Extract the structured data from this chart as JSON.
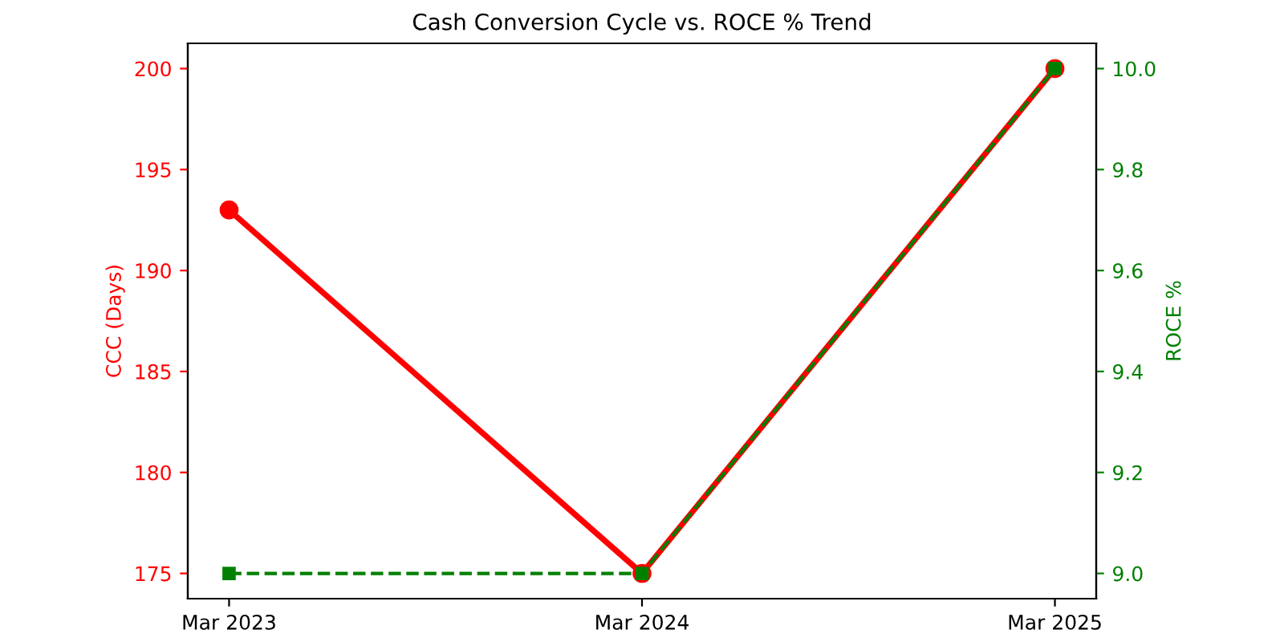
{
  "chart_data": {
    "type": "line",
    "title": "Cash Conversion Cycle vs. ROCE % Trend",
    "ylabel": "CCC (Days)",
    "y2label": "ROCE %",
    "categories": [
      "Mar 2023",
      "Mar 2024",
      "Mar 2025"
    ],
    "series": [
      {
        "color": "#ff0000",
        "values": [
          193,
          175,
          200
        ],
        "marker": "circle",
        "line_style": "solid"
      },
      {
        "color": "#008000",
        "values": [
          9.0,
          9.0,
          10.0
        ],
        "marker": "square",
        "line_style": "dashed",
        "axis": "y2"
      }
    ],
    "ylim": [
      173.75,
      201.25
    ],
    "yticks": [
      175,
      180,
      185,
      190,
      195,
      200
    ],
    "y2lim": [
      8.95,
      10.05
    ],
    "y2ticks": [
      {
        "value": 9.0,
        "label": "9.0"
      },
      {
        "value": 9.2,
        "label": "9.2"
      },
      {
        "value": 9.4,
        "label": "9.4"
      },
      {
        "value": 9.6,
        "label": "9.6"
      },
      {
        "value": 9.8,
        "label": "9.8"
      },
      {
        "value": 10.0,
        "label": "10.0"
      }
    ],
    "grid": false,
    "legend": false
  }
}
